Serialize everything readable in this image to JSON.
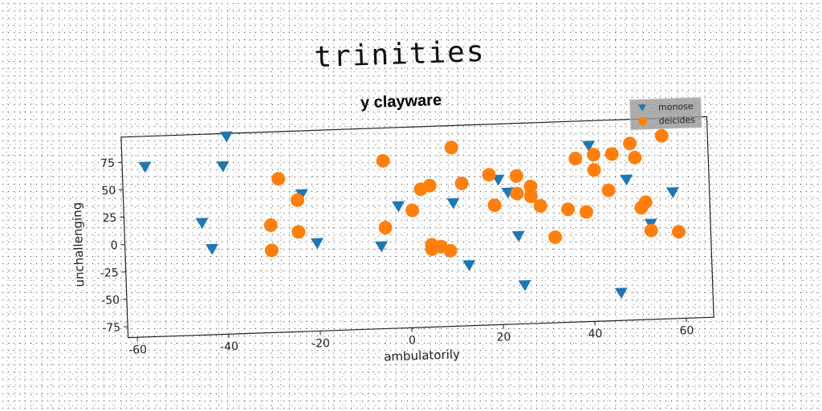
{
  "suptitle": "trinities",
  "chart_data": {
    "type": "scatter",
    "title": "y clayware",
    "xlabel": "ambulatorily",
    "ylabel": "unchallenging",
    "xlim": [
      -62,
      66
    ],
    "ylim": [
      -85,
      98
    ],
    "xticks": [
      -60,
      -40,
      -20,
      0,
      20,
      40,
      60
    ],
    "yticks": [
      -75,
      -50,
      -25,
      0,
      25,
      50,
      75
    ],
    "grid": false,
    "legend_position": "top-right",
    "series": [
      {
        "name": "monose",
        "marker": "triangle-down",
        "color": "#1f77b4",
        "points": [
          [
            -57,
            70
          ],
          [
            -39,
            95
          ],
          [
            -40,
            68
          ],
          [
            -23,
            40
          ],
          [
            -45,
            17
          ],
          [
            -43,
            -7
          ],
          [
            -20,
            -5
          ],
          [
            -6,
            -10
          ],
          [
            -2,
            26
          ],
          [
            10,
            27
          ],
          [
            13,
            -30
          ],
          [
            20,
            47
          ],
          [
            22,
            35
          ],
          [
            24,
            -5
          ],
          [
            25,
            -50
          ],
          [
            40,
            75
          ],
          [
            46,
            -60
          ],
          [
            48,
            43
          ],
          [
            53,
            2
          ],
          [
            58,
            30
          ]
        ]
      },
      {
        "name": "deicides",
        "marker": "circle",
        "color": "#ff7f0e",
        "points": [
          [
            -28,
            55
          ],
          [
            -24,
            35
          ],
          [
            -30,
            13
          ],
          [
            -30,
            -10
          ],
          [
            -24,
            6
          ],
          [
            -5,
            68
          ],
          [
            -5,
            7
          ],
          [
            1,
            22
          ],
          [
            3,
            41
          ],
          [
            5,
            44
          ],
          [
            5,
            -10
          ],
          [
            5,
            -14
          ],
          [
            7,
            -12
          ],
          [
            9,
            -16
          ],
          [
            10,
            78
          ],
          [
            12,
            45
          ],
          [
            18,
            52
          ],
          [
            19,
            24
          ],
          [
            24,
            50
          ],
          [
            24,
            34
          ],
          [
            27,
            40
          ],
          [
            27,
            31
          ],
          [
            29,
            22
          ],
          [
            32,
            -7
          ],
          [
            35,
            18
          ],
          [
            37,
            64
          ],
          [
            39,
            15
          ],
          [
            41,
            67
          ],
          [
            41,
            53
          ],
          [
            44,
            34
          ],
          [
            45,
            67
          ],
          [
            49,
            76
          ],
          [
            50,
            63
          ],
          [
            51,
            17
          ],
          [
            52,
            22
          ],
          [
            53,
            -4
          ],
          [
            56,
            82
          ],
          [
            59,
            -6
          ]
        ]
      }
    ]
  }
}
